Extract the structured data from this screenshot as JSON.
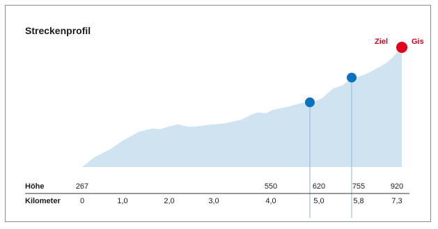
{
  "chart_data": {
    "type": "area",
    "title": "Streckenprofil",
    "colors": {
      "area": "#cfe3f1",
      "marker": "#0a73c0",
      "marker_line": "#84b9dd",
      "finish": "#e2001a",
      "rule": "#333333"
    },
    "profile": {
      "km": [
        0,
        0.3,
        0.7,
        1.0,
        1.35,
        1.65,
        1.8,
        2.0,
        2.2,
        2.4,
        2.6,
        2.9,
        3.2,
        3.5,
        3.7,
        3.8,
        3.95,
        4.1,
        4.4,
        4.7,
        4.85,
        5.0,
        5.15,
        5.4,
        5.6,
        5.8,
        6.0,
        6.2,
        6.4,
        6.6,
        6.8,
        7.0,
        7.15,
        7.3
      ],
      "hoehe": [
        267,
        320,
        365,
        410,
        460,
        478,
        473,
        488,
        500,
        488,
        488,
        498,
        505,
        525,
        555,
        565,
        560,
        580,
        595,
        615,
        622,
        625,
        640,
        695,
        712,
        752,
        760,
        772,
        790,
        810,
        830,
        860,
        890,
        920
      ]
    },
    "markers": [
      {
        "km": 4.9,
        "hoehe": 620
      },
      {
        "km": 5.8,
        "hoehe": 755
      }
    ],
    "finish": {
      "km": 7.3,
      "hoehe": 920,
      "label_left": "Ziel",
      "label_right": "Gis"
    },
    "table": {
      "hoehe_label": "Höhe",
      "km_label": "Kilometer",
      "hoehe_values": [
        "267",
        "",
        "",
        "",
        "550",
        "620",
        "755",
        "920"
      ],
      "km_values": [
        "0",
        "1,0",
        "2,0",
        "3,0",
        "4,0",
        "5,0",
        "5,8",
        "7,3"
      ]
    }
  }
}
